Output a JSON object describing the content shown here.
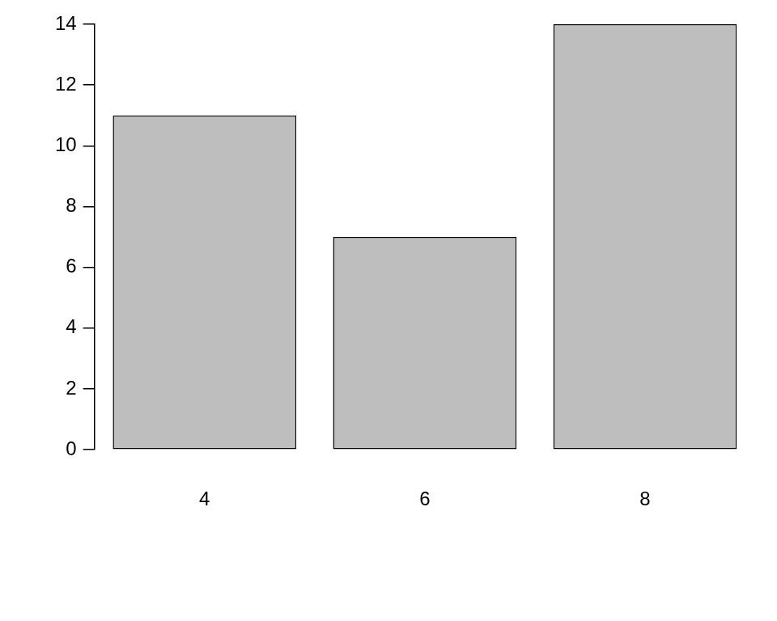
{
  "chart_data": {
    "type": "bar",
    "categories": [
      "4",
      "6",
      "8"
    ],
    "values": [
      11,
      7,
      14
    ],
    "color": "#bebebe",
    "ylim": [
      0,
      14
    ],
    "yticks": [
      0,
      2,
      4,
      6,
      8,
      10,
      12,
      14
    ],
    "grid": false
  }
}
